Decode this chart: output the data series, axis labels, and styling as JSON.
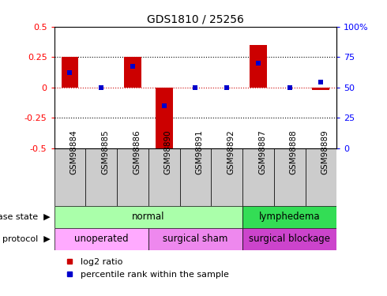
{
  "title": "GDS1810 / 25256",
  "samples": [
    "GSM98884",
    "GSM98885",
    "GSM98886",
    "GSM98890",
    "GSM98891",
    "GSM98892",
    "GSM98887",
    "GSM98888",
    "GSM98889"
  ],
  "log2_ratio": [
    0.25,
    0.0,
    0.25,
    -0.52,
    0.0,
    0.0,
    0.35,
    0.0,
    -0.02
  ],
  "percentile_rank": [
    62,
    50,
    67,
    35,
    50,
    50,
    70,
    50,
    54
  ],
  "ylim_left": [
    -0.5,
    0.5
  ],
  "ylim_right": [
    0,
    100
  ],
  "yticks_left": [
    -0.5,
    -0.25,
    0.0,
    0.25,
    0.5
  ],
  "yticks_right": [
    0,
    25,
    50,
    75,
    100
  ],
  "bar_color": "#cc0000",
  "percentile_color": "#0000cc",
  "zero_line_color": "#cc0000",
  "disease_state_groups": [
    {
      "label": "normal",
      "start": 0,
      "end": 6,
      "color": "#aaffaa"
    },
    {
      "label": "lymphedema",
      "start": 6,
      "end": 9,
      "color": "#33dd55"
    }
  ],
  "protocol_groups": [
    {
      "label": "unoperated",
      "start": 0,
      "end": 3,
      "color": "#ffaaff"
    },
    {
      "label": "surgical sham",
      "start": 3,
      "end": 6,
      "color": "#ee88ee"
    },
    {
      "label": "surgical blockage",
      "start": 6,
      "end": 9,
      "color": "#cc44cc"
    }
  ],
  "legend_log2_label": "log2 ratio",
  "legend_percentile_label": "percentile rank within the sample",
  "disease_state_label": "disease state",
  "protocol_label": "protocol",
  "bar_width": 0.55,
  "xtick_bg_color": "#cccccc",
  "xtick_fontsize": 7.5,
  "bar_fontsize": 8,
  "label_fontsize": 9
}
